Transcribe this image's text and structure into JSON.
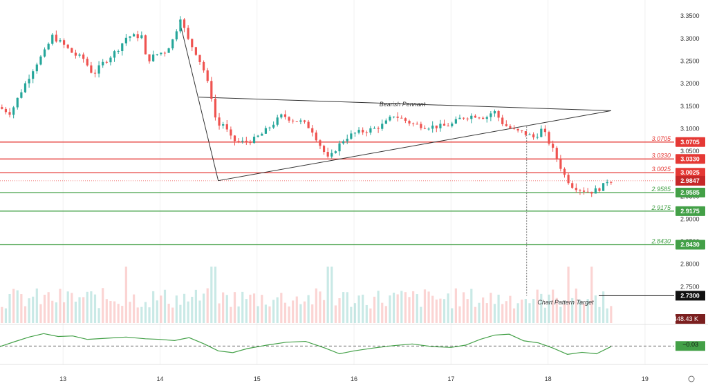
{
  "chart_data": {
    "type": "candlestick",
    "price_range": [
      2.7,
      3.37
    ],
    "price_ticks": [
      3.35,
      3.3,
      3.25,
      3.2,
      3.15,
      3.1,
      3.05,
      3.0,
      2.95,
      2.9,
      2.85,
      2.8,
      2.75
    ],
    "x_ticks": [
      {
        "label": "13",
        "day": 13
      },
      {
        "label": "14",
        "day": 14
      },
      {
        "label": "15",
        "day": 15
      },
      {
        "label": "16",
        "day": 16
      },
      {
        "label": "17",
        "day": 17
      },
      {
        "label": "18",
        "day": 18
      },
      {
        "label": "19",
        "day": 19
      }
    ],
    "x_range": [
      12.35,
      19.3
    ],
    "colors": {
      "up": "#26a69a",
      "down": "#ef5350",
      "resistance": "#e53935",
      "support": "#43a047",
      "pattern": "#333333"
    },
    "price_path": [
      [
        12.35,
        3.15
      ],
      [
        12.5,
        3.135
      ],
      [
        12.6,
        3.18
      ],
      [
        12.75,
        3.24
      ],
      [
        12.85,
        3.27
      ],
      [
        12.93,
        3.305
      ],
      [
        13.05,
        3.285
      ],
      [
        13.15,
        3.265
      ],
      [
        13.25,
        3.255
      ],
      [
        13.35,
        3.22
      ],
      [
        13.45,
        3.245
      ],
      [
        13.6,
        3.275
      ],
      [
        13.7,
        3.305
      ],
      [
        13.85,
        3.305
      ],
      [
        13.9,
        3.25
      ],
      [
        14.0,
        3.265
      ],
      [
        14.1,
        3.272
      ],
      [
        14.18,
        3.3
      ],
      [
        14.25,
        3.348
      ],
      [
        14.32,
        3.3
      ],
      [
        14.42,
        3.265
      ],
      [
        14.5,
        3.225
      ],
      [
        14.55,
        3.185
      ],
      [
        14.6,
        3.15
      ],
      [
        14.62,
        3.1
      ],
      [
        14.68,
        3.115
      ],
      [
        14.78,
        3.075
      ],
      [
        14.88,
        3.07
      ],
      [
        15.0,
        3.075
      ],
      [
        15.1,
        3.09
      ],
      [
        15.2,
        3.11
      ],
      [
        15.3,
        3.13
      ],
      [
        15.4,
        3.12
      ],
      [
        15.5,
        3.115
      ],
      [
        15.6,
        3.1
      ],
      [
        15.7,
        3.06
      ],
      [
        15.78,
        3.03
      ],
      [
        15.85,
        3.055
      ],
      [
        15.95,
        3.08
      ],
      [
        16.05,
        3.09
      ],
      [
        16.15,
        3.095
      ],
      [
        16.25,
        3.1
      ],
      [
        16.35,
        3.11
      ],
      [
        16.45,
        3.13
      ],
      [
        16.55,
        3.12
      ],
      [
        16.65,
        3.11
      ],
      [
        16.8,
        3.105
      ],
      [
        16.95,
        3.105
      ],
      [
        17.05,
        3.11
      ],
      [
        17.15,
        3.125
      ],
      [
        17.3,
        3.13
      ],
      [
        17.4,
        3.125
      ],
      [
        17.48,
        3.14
      ],
      [
        17.58,
        3.11
      ],
      [
        17.7,
        3.095
      ],
      [
        17.8,
        3.09
      ],
      [
        17.9,
        3.08
      ],
      [
        17.98,
        3.1
      ],
      [
        18.05,
        3.07
      ],
      [
        18.12,
        3.04
      ],
      [
        18.2,
        3.0
      ],
      [
        18.28,
        2.975
      ],
      [
        18.38,
        2.965
      ],
      [
        18.48,
        2.96
      ],
      [
        18.55,
        2.965
      ],
      [
        18.62,
        2.975
      ],
      [
        18.65,
        2.985
      ]
    ],
    "volume_max": 448.43,
    "volume_spikes": [
      [
        13.65,
        310
      ],
      [
        14.55,
        480
      ],
      [
        15.75,
        200
      ],
      [
        18.2,
        230
      ],
      [
        18.45,
        170
      ]
    ],
    "oscillator": {
      "range": [
        -0.6,
        0.6
      ],
      "zero_level": -0.03,
      "path": [
        [
          12.35,
          -0.05
        ],
        [
          12.5,
          0.12
        ],
        [
          12.65,
          0.28
        ],
        [
          12.8,
          0.4
        ],
        [
          12.95,
          0.3
        ],
        [
          13.1,
          0.32
        ],
        [
          13.25,
          0.2
        ],
        [
          13.45,
          0.24
        ],
        [
          13.65,
          0.28
        ],
        [
          13.85,
          0.22
        ],
        [
          14.0,
          0.2
        ],
        [
          14.15,
          0.16
        ],
        [
          14.3,
          0.26
        ],
        [
          14.45,
          0.05
        ],
        [
          14.6,
          -0.2
        ],
        [
          14.75,
          -0.26
        ],
        [
          14.9,
          -0.12
        ],
        [
          15.1,
          0.0
        ],
        [
          15.3,
          0.1
        ],
        [
          15.5,
          0.13
        ],
        [
          15.7,
          -0.1
        ],
        [
          15.85,
          -0.3
        ],
        [
          16.0,
          -0.2
        ],
        [
          16.2,
          -0.1
        ],
        [
          16.4,
          -0.02
        ],
        [
          16.6,
          0.04
        ],
        [
          16.8,
          -0.05
        ],
        [
          17.0,
          -0.08
        ],
        [
          17.15,
          0.0
        ],
        [
          17.3,
          0.2
        ],
        [
          17.45,
          0.35
        ],
        [
          17.6,
          0.38
        ],
        [
          17.75,
          0.15
        ],
        [
          17.9,
          0.08
        ],
        [
          18.05,
          -0.1
        ],
        [
          18.2,
          -0.32
        ],
        [
          18.35,
          -0.25
        ],
        [
          18.5,
          -0.3
        ],
        [
          18.62,
          -0.1
        ],
        [
          18.65,
          -0.05
        ]
      ]
    },
    "horizontal_levels": [
      {
        "value": 3.0705,
        "label": "3.0705",
        "kind": "resistance"
      },
      {
        "value": 3.033,
        "label": "3.0330",
        "kind": "resistance"
      },
      {
        "value": 3.0025,
        "label": "3.0025",
        "kind": "resistance"
      },
      {
        "value": 2.9585,
        "label": "2.9585",
        "kind": "support"
      },
      {
        "value": 2.9175,
        "label": "2.9175",
        "kind": "support"
      },
      {
        "value": 2.843,
        "label": "2.8430",
        "kind": "support"
      }
    ],
    "current_price": {
      "value": 2.9847,
      "label": "2.9847"
    },
    "target": {
      "value": 2.73,
      "label": "2.7300",
      "text": "Chart Pattern Target",
      "from_day": 17.78
    },
    "pattern": {
      "name": "Bearish Pennant",
      "apex": [
        18.65,
        3.14
      ],
      "upper_start": [
        14.4,
        3.17
      ],
      "lower_start": [
        14.6,
        2.985
      ],
      "pole_top": [
        14.2,
        3.34
      ]
    },
    "volume_label": "448.43 K",
    "oscillator_label": "−0.03"
  }
}
